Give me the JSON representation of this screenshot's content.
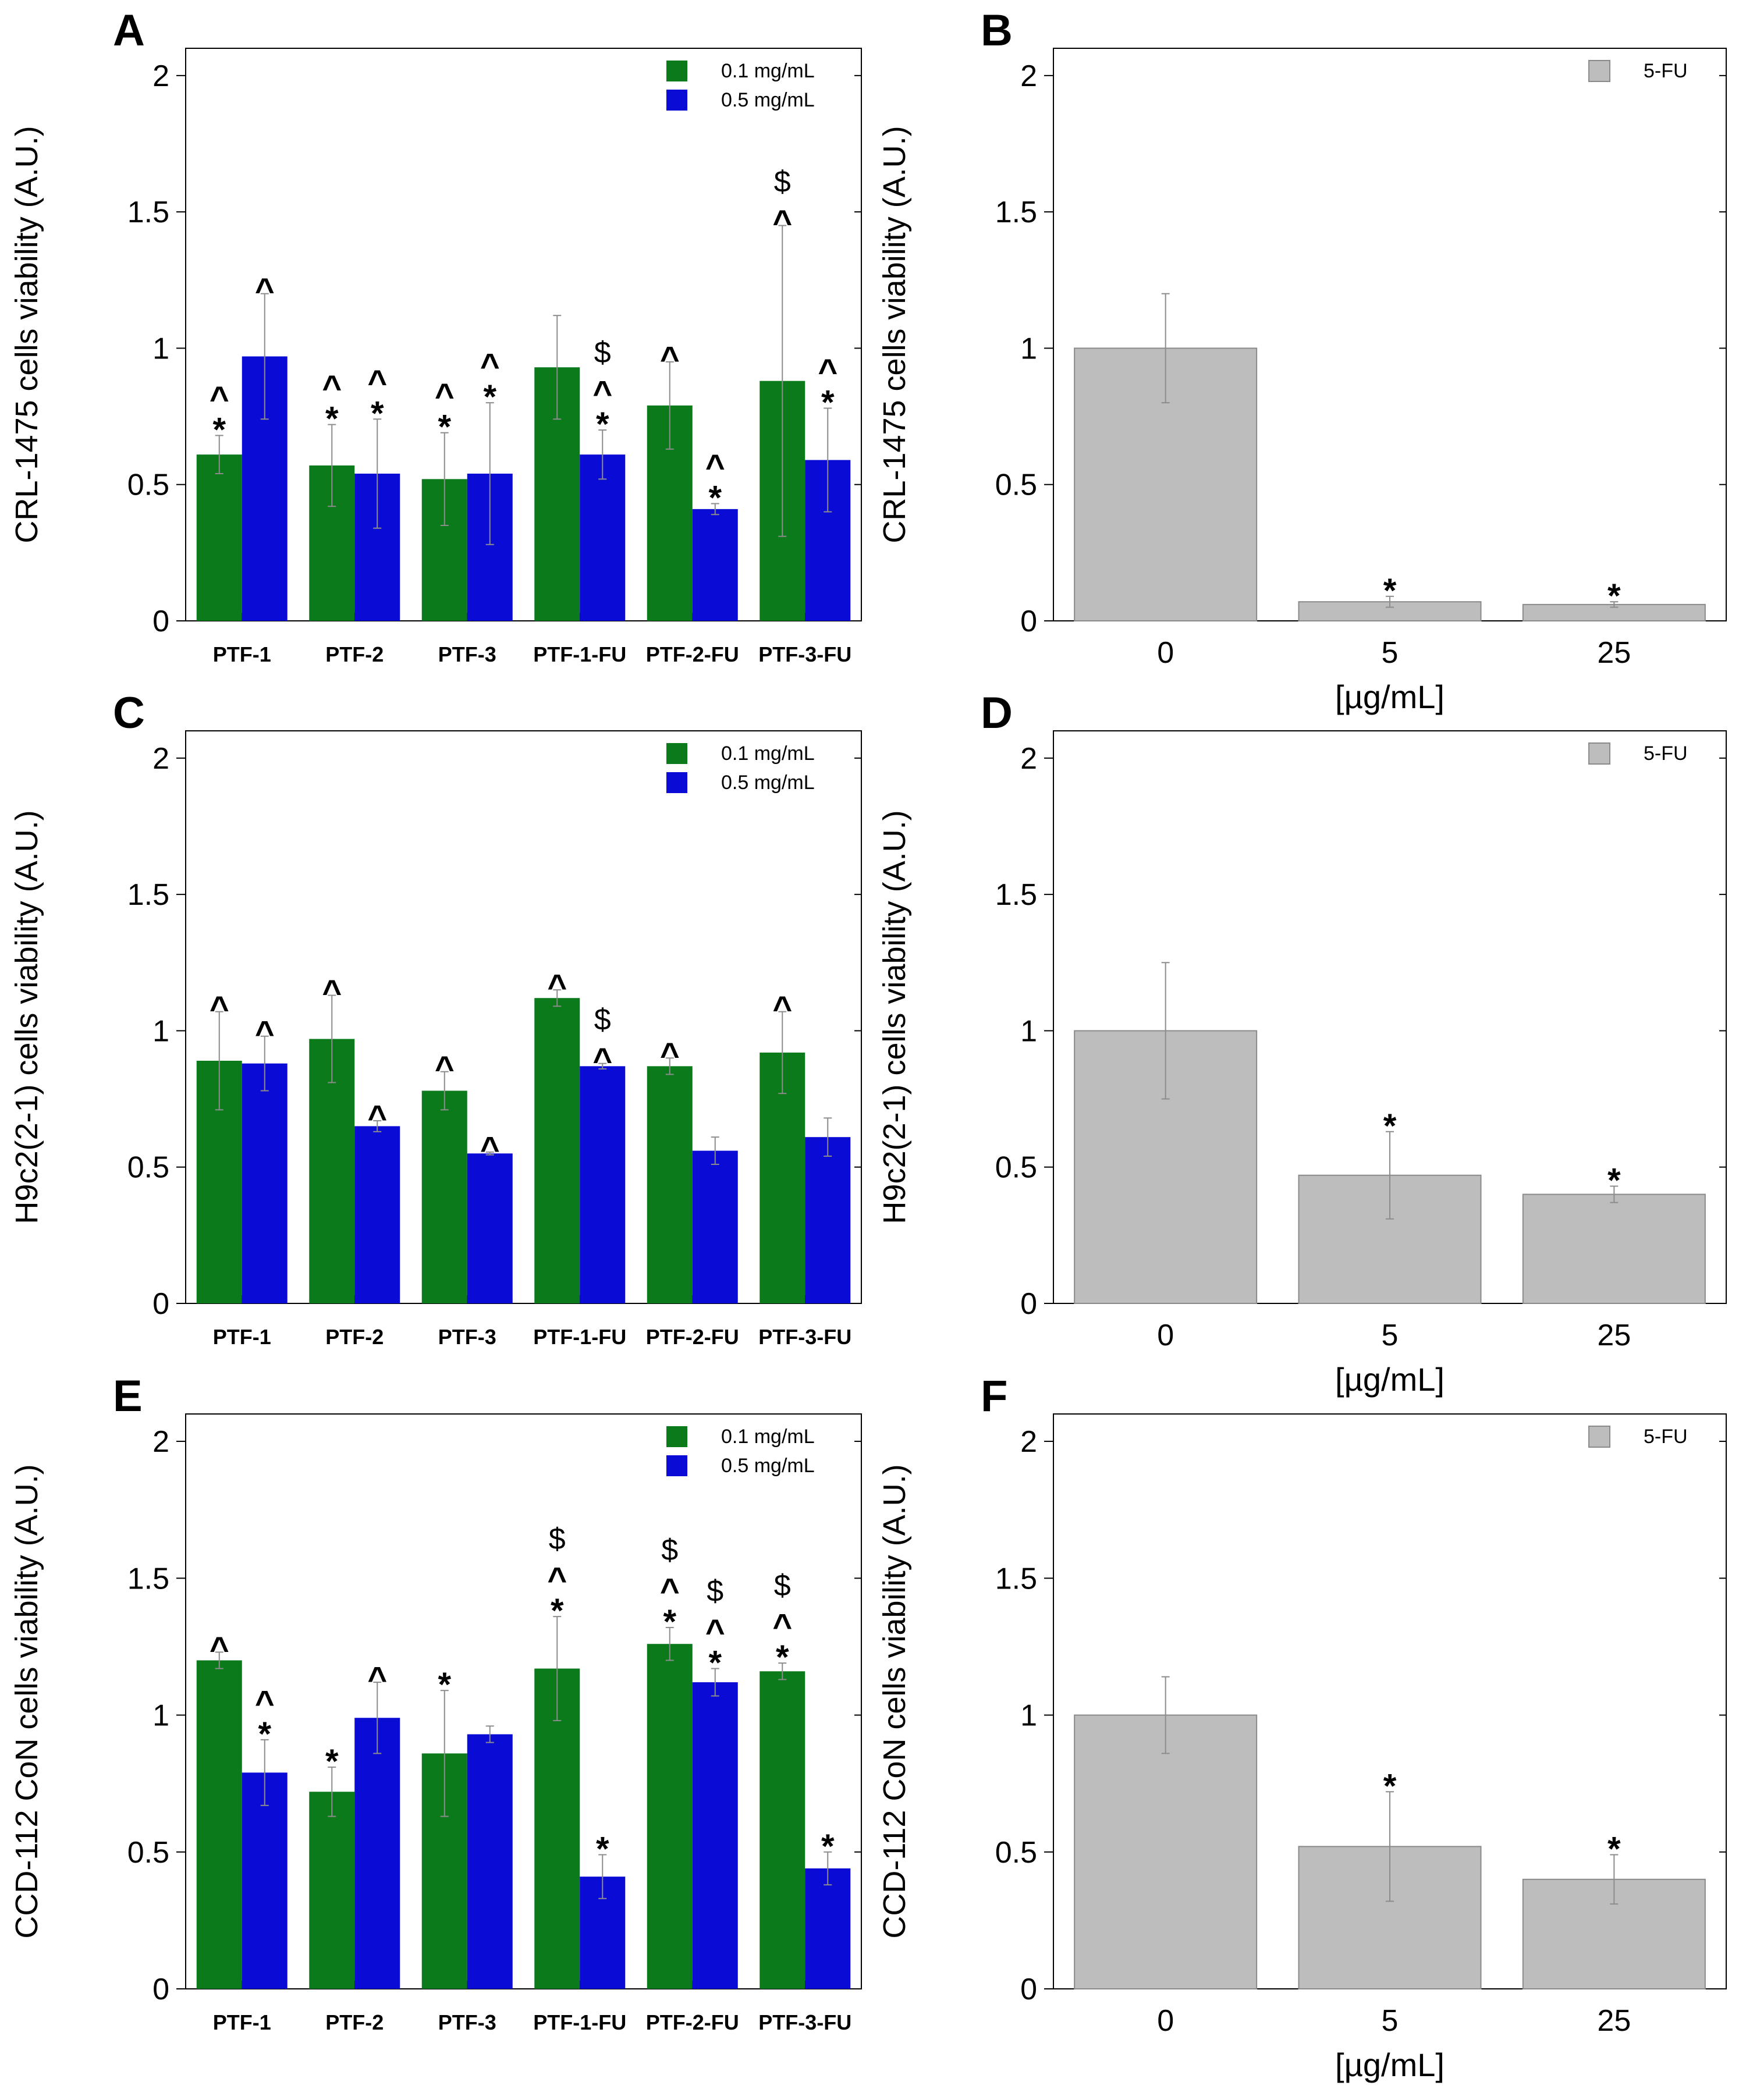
{
  "chart_data": [
    {
      "panel": "A",
      "type": "bar",
      "title": "",
      "xlabel": "",
      "ylabel": "CRL-1475 cells viability (A.U.)",
      "ylim": [
        0,
        2.1
      ],
      "yticks": [
        "0",
        "0.5",
        "1",
        "1.5",
        "2"
      ],
      "categories": [
        "PTF-1",
        "PTF-2",
        "PTF-3",
        "PTF-1-FU",
        "PTF-2-FU",
        "PTF-3-FU"
      ],
      "legend_position": "top-right",
      "series": [
        {
          "name": "0.1 mg/mL",
          "color": "#0a7a1a",
          "values": [
            0.61,
            0.57,
            0.52,
            0.93,
            0.79,
            0.88
          ],
          "errors": [
            0.07,
            0.15,
            0.17,
            0.19,
            0.16,
            0.57
          ],
          "annotations": [
            [
              "^",
              "*"
            ],
            [
              "^",
              "*"
            ],
            [
              "^",
              "*"
            ],
            [],
            [
              "^"
            ],
            [
              "$",
              "^"
            ]
          ]
        },
        {
          "name": "0.5 mg/mL",
          "color": "#0b0bd6",
          "values": [
            0.97,
            0.54,
            0.54,
            0.61,
            0.41,
            0.59
          ],
          "errors": [
            0.23,
            0.2,
            0.26,
            0.09,
            0.02,
            0.19
          ],
          "annotations": [
            [
              "^"
            ],
            [
              "^",
              "*"
            ],
            [
              "^",
              "*"
            ],
            [
              "$",
              "^",
              "*"
            ],
            [
              "^",
              "*"
            ],
            [
              "^",
              "*"
            ]
          ]
        }
      ]
    },
    {
      "panel": "B",
      "type": "bar",
      "title": "",
      "xlabel": "[µg/mL]",
      "ylabel": "CRL-1475 cells viability (A.U.)",
      "ylim": [
        0,
        2.1
      ],
      "yticks": [
        "0",
        "0.5",
        "1",
        "1.5",
        "2"
      ],
      "categories": [
        "0",
        "5",
        "25"
      ],
      "legend_position": "top-right",
      "series": [
        {
          "name": "5-FU",
          "color": "#bdbdbd",
          "values": [
            1.0,
            0.07,
            0.06
          ],
          "errors": [
            0.2,
            0.02,
            0.01
          ],
          "annotations": [
            [],
            [
              "*"
            ],
            [
              "*"
            ]
          ]
        }
      ]
    },
    {
      "panel": "C",
      "type": "bar",
      "title": "",
      "xlabel": "",
      "ylabel": "H9c2(2-1) cells viability (A.U.)",
      "ylim": [
        0,
        2.1
      ],
      "yticks": [
        "0",
        "0.5",
        "1",
        "1.5",
        "2"
      ],
      "categories": [
        "PTF-1",
        "PTF-2",
        "PTF-3",
        "PTF-1-FU",
        "PTF-2-FU",
        "PTF-3-FU"
      ],
      "legend_position": "top-right",
      "series": [
        {
          "name": "0.1 mg/mL",
          "color": "#0a7a1a",
          "values": [
            0.89,
            0.97,
            0.78,
            1.12,
            0.87,
            0.92
          ],
          "errors": [
            0.18,
            0.16,
            0.07,
            0.03,
            0.03,
            0.15
          ],
          "annotations": [
            [
              "^"
            ],
            [
              "^"
            ],
            [
              "^"
            ],
            [
              "^"
            ],
            [
              "^"
            ],
            [
              "^"
            ]
          ]
        },
        {
          "name": "0.5 mg/mL",
          "color": "#0b0bd6",
          "values": [
            0.88,
            0.65,
            0.55,
            0.87,
            0.56,
            0.61
          ],
          "errors": [
            0.1,
            0.02,
            0.005,
            0.01,
            0.05,
            0.07
          ],
          "annotations": [
            [
              "^"
            ],
            [
              "^"
            ],
            [
              "^"
            ],
            [
              "$",
              "^"
            ],
            [],
            []
          ]
        }
      ]
    },
    {
      "panel": "D",
      "type": "bar",
      "title": "",
      "xlabel": "[µg/mL]",
      "ylabel": "H9c2(2-1) cells viability (A.U.)",
      "ylim": [
        0,
        2.1
      ],
      "yticks": [
        "0",
        "0.5",
        "1",
        "1.5",
        "2"
      ],
      "categories": [
        "0",
        "5",
        "25"
      ],
      "legend_position": "top-right",
      "series": [
        {
          "name": "5-FU",
          "color": "#bdbdbd",
          "values": [
            1.0,
            0.47,
            0.4
          ],
          "errors": [
            0.25,
            0.16,
            0.03
          ],
          "annotations": [
            [],
            [
              "*"
            ],
            [
              "*"
            ]
          ]
        }
      ]
    },
    {
      "panel": "E",
      "type": "bar",
      "title": "",
      "xlabel": "",
      "ylabel": "CCD-112 CoN cells viability (A.U.)",
      "ylim": [
        0,
        2.1
      ],
      "yticks": [
        "0",
        "0.5",
        "1",
        "1.5",
        "2"
      ],
      "categories": [
        "PTF-1",
        "PTF-2",
        "PTF-3",
        "PTF-1-FU",
        "PTF-2-FU",
        "PTF-3-FU"
      ],
      "legend_position": "top-right",
      "series": [
        {
          "name": "0.1 mg/mL",
          "color": "#0a7a1a",
          "values": [
            1.2,
            0.72,
            0.86,
            1.17,
            1.26,
            1.16
          ],
          "errors": [
            0.03,
            0.09,
            0.23,
            0.19,
            0.06,
            0.03
          ],
          "annotations": [
            [
              "^"
            ],
            [
              "*"
            ],
            [
              "*"
            ],
            [
              "$",
              "^",
              "*"
            ],
            [
              "$",
              "^",
              "*"
            ],
            [
              "$",
              "^",
              "*"
            ]
          ]
        },
        {
          "name": "0.5 mg/mL",
          "color": "#0b0bd6",
          "values": [
            0.79,
            0.99,
            0.93,
            0.41,
            1.12,
            0.44
          ],
          "errors": [
            0.12,
            0.13,
            0.03,
            0.08,
            0.05,
            0.06
          ],
          "annotations": [
            [
              "^",
              "*"
            ],
            [
              "^"
            ],
            [],
            [
              "*"
            ],
            [
              "$",
              "^",
              "*"
            ],
            [
              "*"
            ]
          ]
        }
      ]
    },
    {
      "panel": "F",
      "type": "bar",
      "title": "",
      "xlabel": "[µg/mL]",
      "ylabel": "CCD-112 CoN cells viability (A.U.)",
      "ylim": [
        0,
        2.1
      ],
      "yticks": [
        "0",
        "0.5",
        "1",
        "1.5",
        "2"
      ],
      "categories": [
        "0",
        "5",
        "25"
      ],
      "legend_position": "top-right",
      "series": [
        {
          "name": "5-FU",
          "color": "#bdbdbd",
          "values": [
            1.0,
            0.52,
            0.4
          ],
          "errors": [
            0.14,
            0.2,
            0.09
          ],
          "annotations": [
            [],
            [
              "*"
            ],
            [
              "*"
            ]
          ]
        }
      ]
    }
  ]
}
